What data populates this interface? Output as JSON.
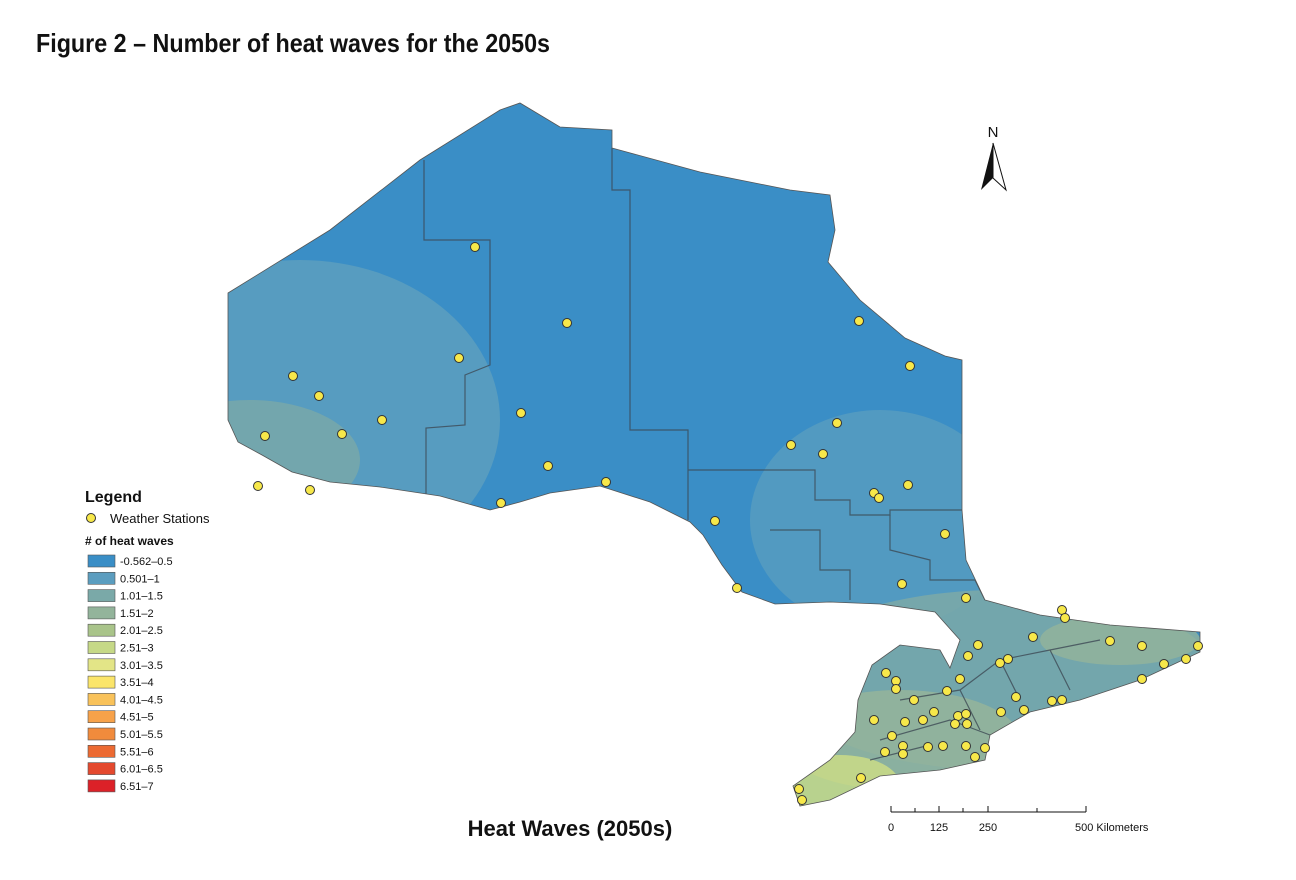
{
  "title": "Figure 2 – Number of heat waves for the 2050s",
  "map_title": "Heat Waves (2050s)",
  "north_label": "N",
  "legend": {
    "title": "Legend",
    "stations_label": "Weather Stations",
    "stations_color": "#f7e84a",
    "classes_title": "# of heat waves",
    "classes": [
      {
        "label": "-0.562–0.5",
        "color": "#3a8ec6"
      },
      {
        "label": "0.501–1",
        "color": "#5b9dbf"
      },
      {
        "label": "1.01–1.5",
        "color": "#7aa9a8"
      },
      {
        "label": "1.51–2",
        "color": "#93b49b"
      },
      {
        "label": "2.01–2.5",
        "color": "#a9c48a"
      },
      {
        "label": "2.51–3",
        "color": "#c6d987"
      },
      {
        "label": "3.01–3.5",
        "color": "#e3e587"
      },
      {
        "label": "3.51–4",
        "color": "#fbe56a"
      },
      {
        "label": "4.01–4.5",
        "color": "#f9c25a"
      },
      {
        "label": "4.51–5",
        "color": "#f7a24a"
      },
      {
        "label": "5.01–5.5",
        "color": "#f18b3c"
      },
      {
        "label": "5.51–6",
        "color": "#ec6a32"
      },
      {
        "label": "6.01–6.5",
        "color": "#e4492e"
      },
      {
        "label": "6.51–7",
        "color": "#dc2128"
      }
    ]
  },
  "scale": {
    "labels": [
      "0",
      "125",
      "250",
      "500 Kilometers"
    ]
  }
}
